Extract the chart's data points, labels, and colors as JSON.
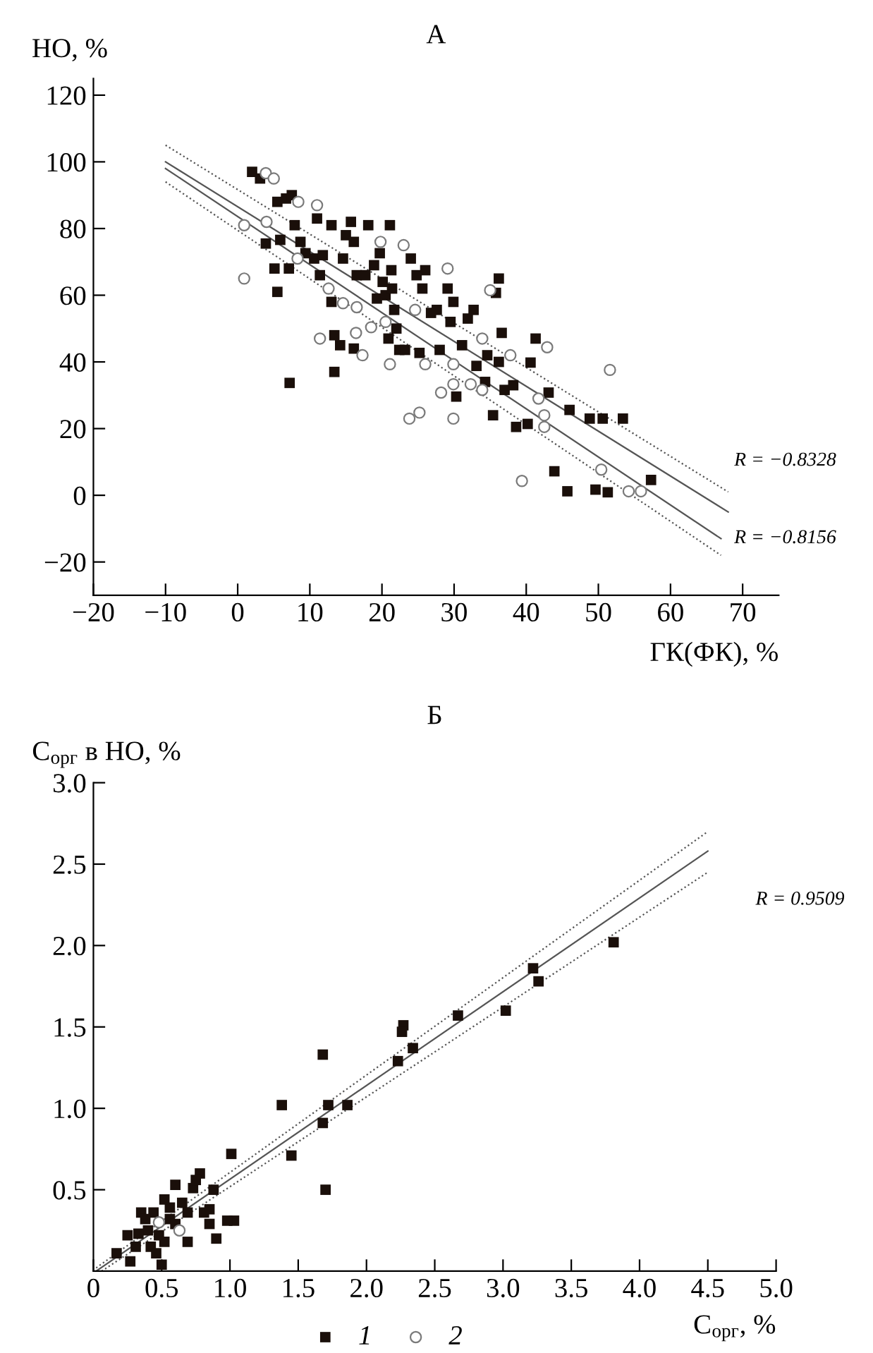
{
  "chart_data": [
    {
      "type": "scatter",
      "title": "А",
      "xlabel": "ГК(ФК), %",
      "ylabel": "НО, %",
      "xlim": [
        -20,
        75
      ],
      "ylim": [
        -30,
        125
      ],
      "xticks": [
        {
          "value": -20,
          "label": "−20"
        },
        {
          "value": -10,
          "label": "−10"
        },
        0,
        10,
        20,
        30,
        40,
        50,
        60,
        70
      ],
      "yticks": [
        {
          "value": -20,
          "label": "−20"
        },
        0,
        20,
        40,
        60,
        80,
        100,
        120
      ],
      "grid": false,
      "legend": false,
      "series": [
        {
          "type": "scatter",
          "marker": "square",
          "color": "#1a0f0a",
          "x": [
            2,
            3.1,
            3.9,
            5.1,
            5.5,
            5.9,
            5.5,
            6.7,
            7.5,
            7.1,
            7.2,
            7.9,
            8.7,
            9.4,
            10.6,
            11,
            11.4,
            11.8,
            13,
            13,
            13.4,
            13.4,
            14.2,
            14.6,
            15,
            15.7,
            16.1,
            16.1,
            16.5,
            17.7,
            18.1,
            18.9,
            19.3,
            19.7,
            20.1,
            20.5,
            20.9,
            21.1,
            21.3,
            21.4,
            21.7,
            22,
            22.4,
            23.2,
            24,
            24.8,
            25.2,
            25.6,
            26,
            26.8,
            27.6,
            28,
            29.1,
            29.9,
            29.5,
            30.3,
            31.1,
            31.9,
            32.7,
            33.1,
            34.3,
            34.6,
            35.4,
            35.8,
            36.2,
            36.2,
            36.6,
            37,
            38.2,
            38.6,
            40.2,
            40.6,
            41.3,
            43.1,
            43.9,
            45.7,
            46,
            48.8,
            49.6,
            50.6,
            51.3,
            53.4,
            57.3
          ],
          "values": [
            97,
            95,
            75.5,
            68,
            61,
            76.6,
            88,
            89,
            90,
            68,
            33.7,
            81,
            76,
            72.6,
            71,
            83,
            66,
            72,
            81,
            58,
            48,
            37,
            45,
            71,
            78,
            82,
            76,
            44,
            66,
            66,
            81,
            69,
            59,
            72.6,
            64,
            60,
            47,
            81,
            67.5,
            62,
            55.6,
            50,
            43.6,
            43.6,
            71,
            66,
            42.7,
            62,
            67.5,
            54.7,
            55.6,
            43.6,
            62,
            58,
            52,
            29.6,
            45,
            53,
            55.6,
            38.8,
            34,
            42,
            24,
            60.7,
            65,
            40,
            48.7,
            31.6,
            33,
            20.5,
            21.4,
            39.8,
            47,
            30.8,
            7.2,
            1.2,
            25.6,
            23,
            1.7,
            23,
            0.9,
            23,
            4.6
          ]
        },
        {
          "type": "scatter",
          "marker": "circle",
          "color": "#7a7a7a",
          "x": [
            0.9,
            0.9,
            3.9,
            5,
            4,
            8.4,
            11,
            11.4,
            14.6,
            16.5,
            16.4,
            17.3,
            18.5,
            19.8,
            21.1,
            23,
            23.8,
            25.2,
            26,
            24.6,
            29.1,
            28.2,
            29.9,
            29.9,
            29.9,
            32.3,
            33.9,
            33.9,
            35,
            37.8,
            39.4,
            41.7,
            42.5,
            42.9,
            42.5,
            51.6,
            50.4,
            54.2,
            55.9,
            8.3,
            12.6,
            20.5
          ],
          "values": [
            81,
            65,
            96.6,
            95,
            82,
            88,
            87,
            47,
            57.6,
            56.4,
            48.7,
            42,
            50.4,
            76,
            39.3,
            75,
            23,
            24.8,
            39.3,
            55.6,
            68,
            30.8,
            39.3,
            33.3,
            23,
            33.3,
            31.6,
            47,
            61.5,
            42,
            4.3,
            29,
            24,
            44.4,
            20.5,
            37.6,
            7.7,
            1.2,
            1.2,
            71,
            62,
            52
          ]
        },
        {
          "type": "line",
          "line_style": "solid",
          "color": "#555555",
          "x": [
            -10,
            68
          ],
          "values": [
            100,
            -5
          ]
        },
        {
          "type": "line",
          "line_style": "dotted",
          "color": "#555555",
          "x": [
            -10,
            68
          ],
          "values": [
            105,
            1
          ]
        },
        {
          "type": "line",
          "line_style": "solid",
          "color": "#555555",
          "x": [
            -10,
            67
          ],
          "values": [
            98,
            -13
          ]
        },
        {
          "type": "line",
          "line_style": "dotted",
          "color": "#555555",
          "x": [
            -10,
            67
          ],
          "values": [
            94,
            -18
          ]
        }
      ],
      "annotations": [
        "R = −0.8328",
        "R = −0.8156"
      ]
    },
    {
      "type": "scatter",
      "title": "Б",
      "xlabel": "C$_{орг}$, %",
      "ylabel": "C$_{орг}$ в НО, %",
      "xlim": [
        0,
        5
      ],
      "ylim": [
        0,
        3
      ],
      "xticks": [
        {
          "value": 0,
          "label": "0"
        },
        {
          "value": 0.5,
          "label": "0.5"
        },
        {
          "value": 1,
          "label": "1.0"
        },
        {
          "value": 1.5,
          "label": "1.5"
        },
        {
          "value": 2,
          "label": "2.0"
        },
        {
          "value": 2.5,
          "label": "2.5"
        },
        {
          "value": 3,
          "label": "3.0"
        },
        {
          "value": 3.5,
          "label": "3.5"
        },
        {
          "value": 4,
          "label": "4.0"
        },
        {
          "value": 4.5,
          "label": "4.5"
        },
        {
          "value": 5,
          "label": "5.0"
        }
      ],
      "yticks": [
        {
          "value": 0.5,
          "label": "0.5"
        },
        {
          "value": 1,
          "label": "1.0"
        },
        {
          "value": 1.5,
          "label": "1.5"
        },
        {
          "value": 2,
          "label": "2.0"
        },
        {
          "value": 2.5,
          "label": "2.5"
        },
        {
          "value": 3,
          "label": "3.0"
        }
      ],
      "grid": false,
      "legend": "bottom",
      "series": [
        {
          "type": "scatter",
          "name": "1",
          "marker": "square",
          "color": "#1a0f0a",
          "x": [
            3.81,
            3.22,
            3.26,
            3.02,
            2.67,
            2.27,
            2.26,
            2.34,
            2.23,
            1.68,
            1.38,
            1.72,
            1.86,
            1.68,
            1.45,
            1.01,
            1.7,
            1.03,
            0.98,
            0.9,
            0.85,
            0.85,
            0.78,
            0.88,
            0.73,
            0.69,
            0.6,
            0.56,
            0.52,
            0.5,
            0.44,
            0.4,
            0.35,
            0.31,
            0.25,
            0.17,
            0.27,
            0.65,
            0.56,
            0.48,
            0.42,
            0.69,
            0.6,
            0.38,
            0.33,
            0.52,
            0.46,
            0.75,
            0.81
          ],
          "values": [
            2.02,
            1.86,
            1.78,
            1.6,
            1.57,
            1.51,
            1.47,
            1.37,
            1.29,
            1.33,
            1.02,
            1.02,
            1.02,
            0.91,
            0.71,
            0.72,
            0.5,
            0.31,
            0.31,
            0.2,
            0.29,
            0.38,
            0.6,
            0.5,
            0.51,
            0.18,
            0.53,
            0.39,
            0.18,
            0.04,
            0.36,
            0.25,
            0.36,
            0.15,
            0.22,
            0.11,
            0.06,
            0.42,
            0.32,
            0.22,
            0.15,
            0.36,
            0.29,
            0.32,
            0.23,
            0.44,
            0.11,
            0.56,
            0.36
          ]
        },
        {
          "type": "scatter",
          "name": "2",
          "marker": "circle",
          "color": "#7a7a7a",
          "x": [
            0.63,
            0.48
          ],
          "values": [
            0.25,
            0.3
          ]
        },
        {
          "type": "line",
          "line_style": "solid",
          "color": "#555555",
          "x": [
            0.02,
            4.5
          ],
          "values": [
            0,
            2.58
          ]
        },
        {
          "type": "line",
          "line_style": "dotted",
          "color": "#555555",
          "x": [
            0.02,
            4.5
          ],
          "values": [
            0.02,
            2.7
          ]
        },
        {
          "type": "line",
          "line_style": "dotted",
          "color": "#555555",
          "x": [
            0.06,
            4.5
          ],
          "values": [
            0,
            2.45
          ]
        }
      ],
      "annotations": [
        "R = 0.9509"
      ]
    }
  ]
}
